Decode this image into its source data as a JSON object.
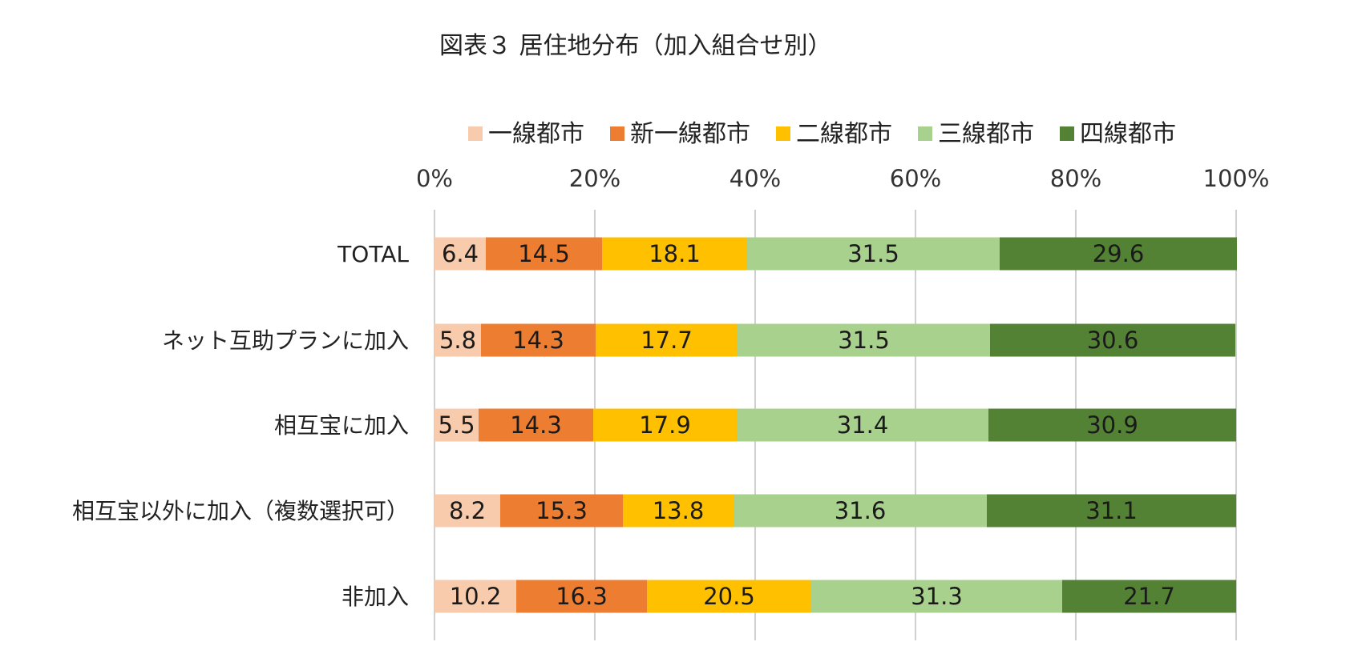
{
  "chart_data": {
    "type": "bar",
    "orientation": "horizontal",
    "stacked": "percent",
    "title": "図表３ 居住地分布（加入組合せ別）",
    "categories": [
      "TOTAL",
      "ネット互助プランに加入",
      "相互宝に加入",
      "相互宝以外に加入（複数選択可）",
      "非加入"
    ],
    "series": [
      {
        "name": "一線都市",
        "color": "#f8cbad",
        "values": [
          6.4,
          5.8,
          5.5,
          8.2,
          10.2
        ]
      },
      {
        "name": "新一線都市",
        "color": "#ed7d31",
        "values": [
          14.5,
          14.3,
          14.3,
          15.3,
          16.3
        ]
      },
      {
        "name": "二線都市",
        "color": "#ffc000",
        "values": [
          18.1,
          17.7,
          17.9,
          13.8,
          20.5
        ]
      },
      {
        "name": "三線都市",
        "color": "#a9d18e",
        "values": [
          31.5,
          31.5,
          31.4,
          31.6,
          31.3
        ]
      },
      {
        "name": "四線都市",
        "color": "#548235",
        "values": [
          29.6,
          30.6,
          30.9,
          31.1,
          21.7
        ]
      }
    ],
    "xlim": [
      0,
      100
    ],
    "x_ticks": [
      "0%",
      "20%",
      "40%",
      "60%",
      "80%",
      "100%"
    ],
    "grid": true,
    "legend_position": "top"
  }
}
